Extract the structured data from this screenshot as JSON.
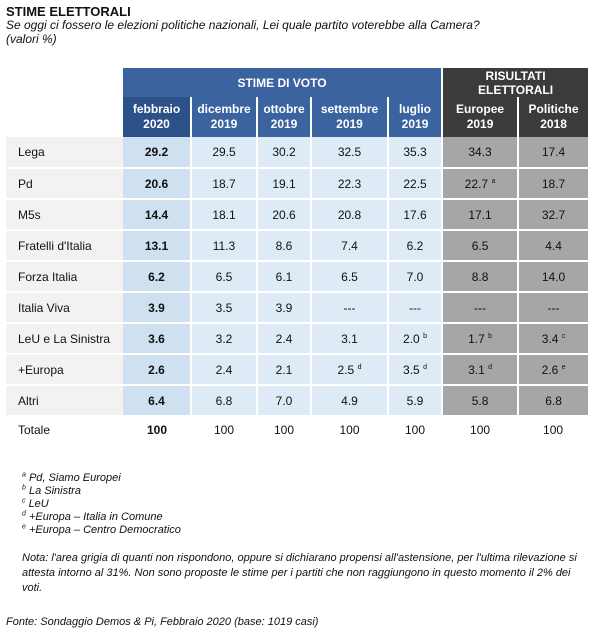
{
  "title": "STIME ELETTORALI",
  "subtitle": "Se oggi ci fossero le elezioni politiche nazionali,  Lei quale partito voterebbe alla Camera?",
  "subtitle2": "(valori %)",
  "headers": {
    "stime": "STIME DI VOTO",
    "risultati_line1": "RISULTATI",
    "risultati_line2": "ELETTORALI",
    "columns": [
      {
        "month": "febbraio",
        "year": "2020"
      },
      {
        "month": "dicembre",
        "year": "2019"
      },
      {
        "month": "ottobre",
        "year": "2019"
      },
      {
        "month": "settembre",
        "year": "2019"
      },
      {
        "month": "luglio",
        "year": "2019"
      },
      {
        "month": "Europee",
        "year": "2019"
      },
      {
        "month": "Politiche",
        "year": "2018"
      }
    ]
  },
  "rows": [
    {
      "label": "Lega",
      "values": [
        "29.2",
        "29.5",
        "30.2",
        "32.5",
        "35.3",
        "34.3",
        "17.4"
      ],
      "sups": [
        "",
        "",
        "",
        "",
        "",
        "",
        ""
      ]
    },
    {
      "label": "Pd",
      "values": [
        "20.6",
        "18.7",
        "19.1",
        "22.3",
        "22.5",
        "22.7",
        "18.7"
      ],
      "sups": [
        "",
        "",
        "",
        "",
        "",
        "a",
        ""
      ]
    },
    {
      "label": "M5s",
      "values": [
        "14.4",
        "18.1",
        "20.6",
        "20.8",
        "17.6",
        "17.1",
        "32.7"
      ],
      "sups": [
        "",
        "",
        "",
        "",
        "",
        "",
        ""
      ]
    },
    {
      "label": "Fratelli d'Italia",
      "values": [
        "13.1",
        "11.3",
        "8.6",
        "7.4",
        "6.2",
        "6.5",
        "4.4"
      ],
      "sups": [
        "",
        "",
        "",
        "",
        "",
        "",
        ""
      ]
    },
    {
      "label": "Forza Italia",
      "values": [
        "6.2",
        "6.5",
        "6.1",
        "6.5",
        "7.0",
        "8.8",
        "14.0"
      ],
      "sups": [
        "",
        "",
        "",
        "",
        "",
        "",
        ""
      ]
    },
    {
      "label": "Italia Viva",
      "values": [
        "3.9",
        "3.5",
        "3.9",
        "---",
        "---",
        "---",
        "---"
      ],
      "sups": [
        "",
        "",
        "",
        "",
        "",
        "",
        ""
      ]
    },
    {
      "label": "LeU e La Sinistra",
      "values": [
        "3.6",
        "3.2",
        "2.4",
        "3.1",
        "2.0",
        "1.7",
        "3.4"
      ],
      "sups": [
        "",
        "",
        "",
        "",
        "b",
        "b",
        "c"
      ]
    },
    {
      "label": "+Europa",
      "values": [
        "2.6",
        "2.4",
        "2.1",
        "2.5",
        "3.5",
        "3.1",
        "2.6"
      ],
      "sups": [
        "",
        "",
        "",
        "d",
        "d",
        "d",
        "e"
      ]
    },
    {
      "label": "Altri",
      "values": [
        "6.4",
        "6.8",
        "7.0",
        "4.9",
        "5.9",
        "5.8",
        "6.8"
      ],
      "sups": [
        "",
        "",
        "",
        "",
        "",
        "",
        ""
      ]
    }
  ],
  "totale": {
    "label": "Totale",
    "values": [
      "100",
      "100",
      "100",
      "100",
      "100",
      "100",
      "100"
    ]
  },
  "footnotes": [
    {
      "mark": "a",
      "text": "Pd, Siamo Europei"
    },
    {
      "mark": "b",
      "text": "La Sinistra"
    },
    {
      "mark": "c",
      "text": "LeU"
    },
    {
      "mark": "d",
      "text": "+Europa – Italia in Comune"
    },
    {
      "mark": "e",
      "text": "+Europa – Centro Democratico"
    }
  ],
  "nota": "Nota: l'area grigia di quanti non rispondono, oppure si dichiarano propensi all'astensione, per l'ultima rilevazione si attesta intorno al 31%. Non sono proposte le stime per i partiti che non raggiungono in questo momento il 2% dei voti.",
  "fonte": "Fonte: Sondaggio Demos & Pi, Febbraio 2020 (base: 1019 casi)"
}
